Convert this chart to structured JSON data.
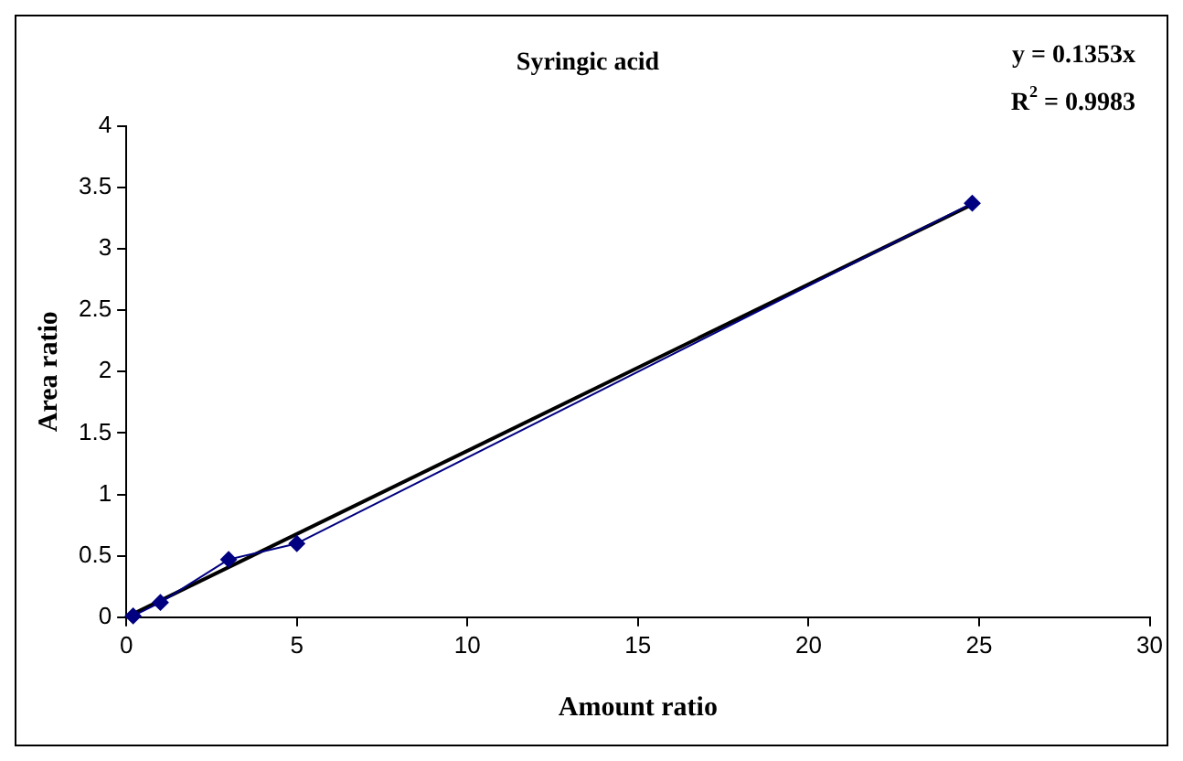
{
  "chart_data": {
    "type": "line",
    "title": "Syringic acid",
    "xlabel": "Amount ratio",
    "ylabel": "Area ratio",
    "annotations": [
      "y = 0.1353x",
      "R$^{2}$ = 0.9983"
    ],
    "xlim": [
      0,
      30
    ],
    "xticks": [
      0,
      5,
      10,
      15,
      20,
      25,
      30
    ],
    "ylim": [
      0,
      4
    ],
    "yticks": [
      0,
      0.5,
      1,
      1.5,
      2,
      2.5,
      3,
      3.5,
      4
    ],
    "grid": false,
    "legend": false,
    "series": [
      {
        "color": "#000080",
        "marker": "diamond",
        "x": [
          0.2,
          1,
          3,
          5,
          24.8
        ],
        "values": [
          0.01,
          0.12,
          0.47,
          0.6,
          3.37
        ]
      },
      {
        "color": "#000000",
        "marker": "none",
        "x": [
          0,
          24.8
        ],
        "values": [
          0,
          3.36
        ]
      }
    ]
  }
}
